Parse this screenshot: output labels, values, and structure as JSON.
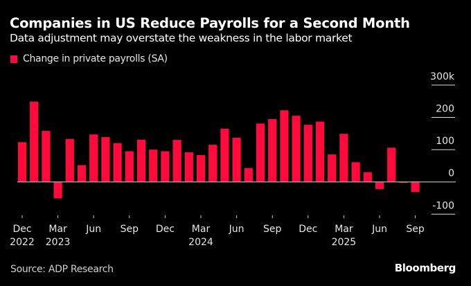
{
  "header": {
    "title": "Companies in US Reduce Payrolls for a Second Month",
    "subtitle": "Data adjustment may overstate the weakness in the labor market"
  },
  "footer": {
    "source": "Source: ADP Research",
    "brand": "Bloomberg"
  },
  "colors": {
    "background": "#000000",
    "bar": "#ff0a3c",
    "gridline": "#e0e0e0",
    "zero_line": "#a0a0a0",
    "text": "#e6e6e6"
  },
  "chart_data": {
    "type": "bar",
    "title": "Companies in US Reduce Payrolls for a Second Month",
    "subtitle": "Data adjustment may overstate the weakness in the labor market",
    "xlabel": "",
    "ylabel": "",
    "legend": {
      "position": "top-left",
      "entries": [
        "Change in private payrolls (SA)"
      ]
    },
    "grid": true,
    "ylim": [
      -100,
      300
    ],
    "y_ticks": [
      {
        "value": 300,
        "label": "300k"
      },
      {
        "value": 200,
        "label": "200"
      },
      {
        "value": 100,
        "label": "100"
      },
      {
        "value": 0,
        "label": "0"
      },
      {
        "value": -100,
        "label": "-100"
      }
    ],
    "x_ticks": [
      {
        "index": 0,
        "label": "Dec",
        "year": "2022"
      },
      {
        "index": 3,
        "label": "Mar",
        "year": "2023"
      },
      {
        "index": 6,
        "label": "Jun",
        "year": ""
      },
      {
        "index": 9,
        "label": "Sep",
        "year": ""
      },
      {
        "index": 12,
        "label": "Dec",
        "year": ""
      },
      {
        "index": 15,
        "label": "Mar",
        "year": "2024"
      },
      {
        "index": 18,
        "label": "Jun",
        "year": ""
      },
      {
        "index": 21,
        "label": "Sep",
        "year": ""
      },
      {
        "index": 24,
        "label": "Dec",
        "year": ""
      },
      {
        "index": 27,
        "label": "Mar",
        "year": "2025"
      },
      {
        "index": 30,
        "label": "Jun",
        "year": ""
      },
      {
        "index": 33,
        "label": "Sep",
        "year": ""
      }
    ],
    "categories": [
      "2022-12",
      "2023-01",
      "2023-02",
      "2023-03",
      "2023-04",
      "2023-05",
      "2023-06",
      "2023-07",
      "2023-08",
      "2023-09",
      "2023-10",
      "2023-11",
      "2023-12",
      "2024-01",
      "2024-02",
      "2024-03",
      "2024-04",
      "2024-05",
      "2024-06",
      "2024-07",
      "2024-08",
      "2024-09",
      "2024-10",
      "2024-11",
      "2024-12",
      "2025-01",
      "2025-02",
      "2025-03",
      "2025-04",
      "2025-05",
      "2025-06",
      "2025-07",
      "2025-08",
      "2025-09"
    ],
    "series": [
      {
        "name": "Change in private payrolls (SA)",
        "unit": "thousands",
        "values": [
          123,
          249,
          158,
          -51,
          133,
          52,
          147,
          139,
          120,
          95,
          131,
          100,
          95,
          130,
          92,
          83,
          115,
          165,
          137,
          43,
          181,
          195,
          222,
          205,
          177,
          187,
          85,
          149,
          61,
          30,
          -22,
          106,
          -3,
          -31
        ]
      }
    ]
  }
}
